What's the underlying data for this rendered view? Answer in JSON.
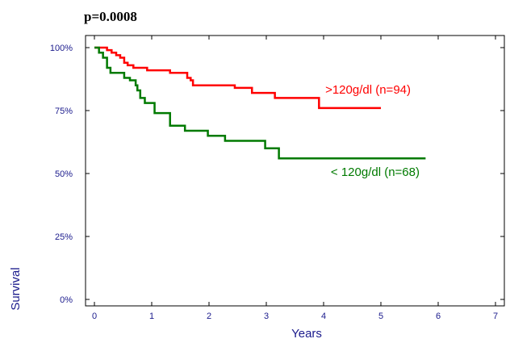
{
  "chart_data": {
    "type": "line",
    "title": "p=0.0008",
    "xlabel": "Years",
    "ylabel": "Survival",
    "xlim": [
      0,
      7
    ],
    "ylim": [
      0,
      100
    ],
    "x_ticks": [
      "0",
      "1",
      "2",
      "3",
      "4",
      "5",
      "6",
      "7"
    ],
    "y_ticks": [
      "0%",
      "25%",
      "50%",
      "75%",
      "100%"
    ],
    "grid": false,
    "series": [
      {
        "name": ">120g/dl (n=94)",
        "color": "#ff0000",
        "step_x": [
          0,
          0.22,
          0.3,
          0.38,
          0.45,
          0.52,
          0.58,
          0.68,
          0.92,
          1.32,
          1.62,
          1.68,
          1.72,
          2.45,
          2.75,
          3.15,
          3.92,
          5.0
        ],
        "step_y": [
          100,
          99,
          98,
          97,
          96,
          94,
          93,
          92,
          91,
          90,
          88,
          87,
          85,
          84,
          82,
          80,
          76,
          76
        ]
      },
      {
        "name": "< 120g/dl (n=68)",
        "color": "#007a00",
        "step_x": [
          0,
          0.08,
          0.15,
          0.22,
          0.28,
          0.52,
          0.62,
          0.72,
          0.75,
          0.8,
          0.88,
          1.05,
          1.32,
          1.58,
          1.98,
          2.28,
          2.98,
          3.22,
          5.78
        ],
        "step_y": [
          100,
          98,
          96,
          92,
          90,
          88,
          87,
          85,
          83,
          80,
          78,
          74,
          69,
          67,
          65,
          63,
          60,
          56,
          56
        ]
      }
    ]
  }
}
